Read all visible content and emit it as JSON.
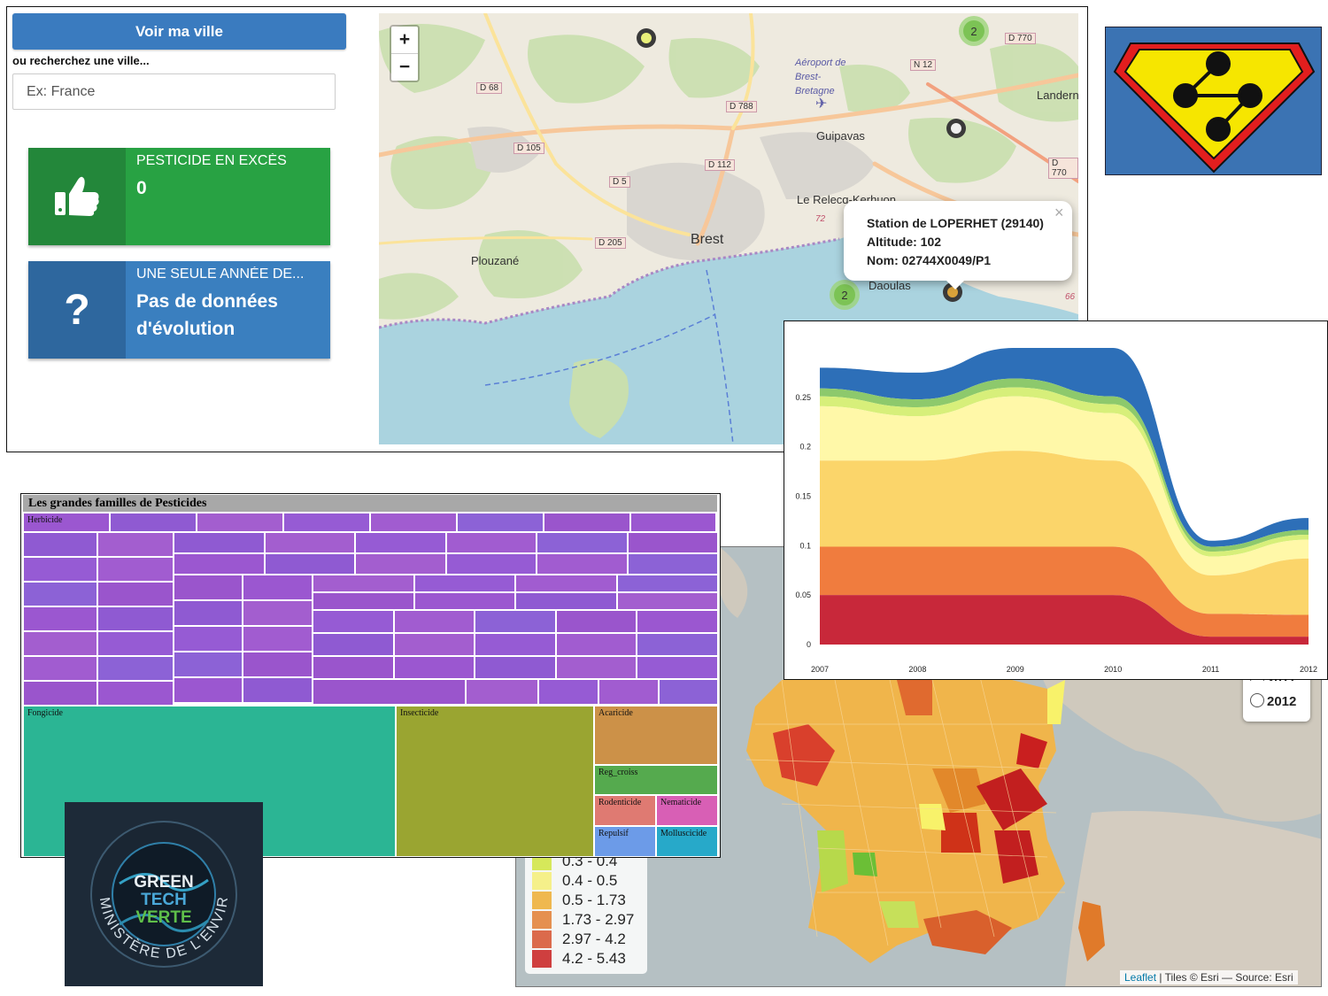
{
  "top_panel": {
    "city_button": "Voir ma ville",
    "search_hint": "ou recherchez une ville...",
    "search_placeholder": "Ex: France",
    "box_excess": {
      "label": "PESTICIDE EN EXCÈS",
      "value": "0",
      "color": "#28a243",
      "icon": "thumbs-up-icon"
    },
    "box_evolution": {
      "label": "UNE SEULE ANNÉE DE...",
      "value": "Pas de données d'évolution",
      "color": "#3a7fbf",
      "icon": "question-mark-icon"
    }
  },
  "street_map": {
    "zoom_in": "+",
    "zoom_out": "−",
    "places": [
      "Aéroport de Brest-Bretagne",
      "Guipavas",
      "Le Relecq-Kerhuon",
      "Brest",
      "Plouzané",
      "Daoulas",
      "Landerneau"
    ],
    "roads": [
      "D 770",
      "N 12",
      "D 68",
      "D 788",
      "D 105",
      "D 112",
      "D 5",
      "D 205",
      "72",
      "66"
    ],
    "clusters": [
      "2",
      "2"
    ],
    "popup": {
      "line1": "Station de LOPERHET (29140)",
      "line2": "Altitude: 102",
      "line3": "Nom: 02744X0049/P1",
      "close": "×"
    }
  },
  "france_map": {
    "legend": [
      {
        "label": "0.3 - 0.4",
        "color": "#d6e85a"
      },
      {
        "label": "0.4 - 0.5",
        "color": "#f5f08a"
      },
      {
        "label": "0.5 - 1.73",
        "color": "#efb84f"
      },
      {
        "label": "1.73 - 2.97",
        "color": "#e59050"
      },
      {
        "label": "2.97 - 4.2",
        "color": "#db6a4c"
      },
      {
        "label": "4.2 - 5.43",
        "color": "#cf3f3f"
      }
    ],
    "year_partial": "2011",
    "year_selected": "2012",
    "attribution_link": "Leaflet",
    "attribution_text": " | Tiles © Esri — Source: Esri"
  },
  "treemap": {
    "title": "Les grandes familles de Pesticides",
    "categories": [
      {
        "label": "Herbicide",
        "color": "#9b59d0"
      },
      {
        "label": "Fongicide",
        "color": "#2bb594"
      },
      {
        "label": "Insecticide",
        "color": "#9aa531"
      },
      {
        "label": "Acaricide",
        "color": "#cc9148"
      },
      {
        "label": "Reg_croiss",
        "color": "#55aa4e"
      },
      {
        "label": "Rodenticide",
        "color": "#df7a72"
      },
      {
        "label": "Nematicide",
        "color": "#d85fb5"
      },
      {
        "label": "Repulsif",
        "color": "#6c9be8"
      },
      {
        "label": "Molluscicide",
        "color": "#27a9c9"
      }
    ]
  },
  "chart_data": {
    "type": "area",
    "stacked": true,
    "x": [
      2007,
      2008,
      2009,
      2010,
      2011,
      2012
    ],
    "x_ticks": [
      "2007",
      "2008",
      "2009",
      "2010",
      "2011",
      "2012"
    ],
    "y_ticks": [
      "0",
      "0.05",
      "0.1",
      "0.15",
      "0.2",
      "0.25"
    ],
    "ylim": [
      0,
      0.3
    ],
    "series": [
      {
        "color": "#c8283a",
        "values": [
          0.05,
          0.05,
          0.05,
          0.05,
          0.008,
          0.008
        ]
      },
      {
        "color": "#f07c3e",
        "values": [
          0.049,
          0.049,
          0.049,
          0.049,
          0.023,
          0.022
        ]
      },
      {
        "color": "#fbd56a",
        "values": [
          0.087,
          0.087,
          0.097,
          0.087,
          0.039,
          0.057
        ]
      },
      {
        "color": "#fff8a8",
        "values": [
          0.055,
          0.045,
          0.055,
          0.048,
          0.019,
          0.019
        ]
      },
      {
        "color": "#d7ef7a",
        "values": [
          0.01,
          0.009,
          0.009,
          0.009,
          0.005,
          0.005
        ]
      },
      {
        "color": "#8dc96c",
        "values": [
          0.008,
          0.008,
          0.009,
          0.008,
          0.005,
          0.005
        ]
      },
      {
        "color": "#2d6fb8",
        "values": [
          0.021,
          0.027,
          0.031,
          0.049,
          0.006,
          0.012
        ]
      }
    ]
  }
}
